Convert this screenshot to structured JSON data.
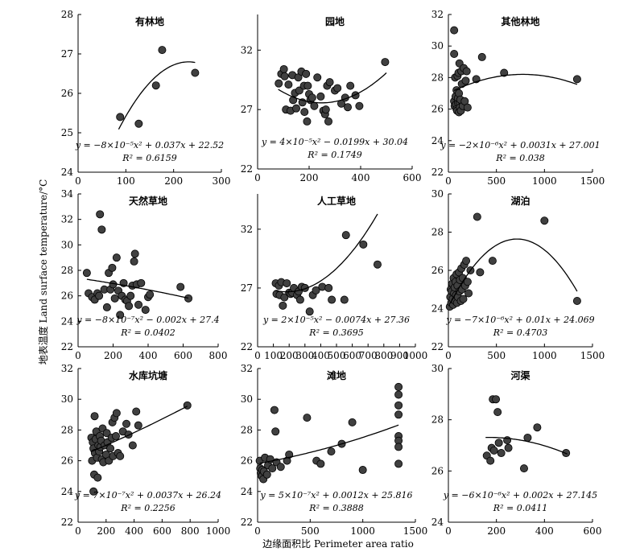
{
  "figure": {
    "ylabel": "地表温度 Land surface temperature/°C",
    "xlabel": "边缘面积比 Perimeter area ratio"
  },
  "chart_data": [
    {
      "type": "scatter",
      "title": "有林地",
      "xlim": [
        0,
        300
      ],
      "ylim": [
        24,
        28
      ],
      "xticks": [
        0,
        100,
        200,
        300
      ],
      "yticks": [
        24,
        25,
        26,
        27,
        28
      ],
      "points": [
        [
          88,
          25.4
        ],
        [
          127,
          25.23
        ],
        [
          163,
          26.2
        ],
        [
          176,
          27.1
        ],
        [
          245,
          26.52
        ]
      ],
      "fit": {
        "a": -8e-05,
        "b": 0.037,
        "c": 22.52,
        "xrange": [
          85,
          245
        ]
      },
      "equation": "y = −8×10⁻⁵x² + 0.037x + 22.52",
      "r2": "R² = 0.6159"
    },
    {
      "type": "scatter",
      "title": "园地",
      "xlim": [
        0,
        600
      ],
      "ylim": [
        22,
        35
      ],
      "xticks": [
        0,
        200,
        400,
        600
      ],
      "yticks": [
        22,
        27,
        32
      ],
      "points": [
        [
          82,
          29.2
        ],
        [
          92,
          30.0
        ],
        [
          102,
          30.4
        ],
        [
          105,
          29.8
        ],
        [
          110,
          27.0
        ],
        [
          120,
          29.1
        ],
        [
          128,
          26.9
        ],
        [
          135,
          29.9
        ],
        [
          138,
          27.8
        ],
        [
          145,
          28.4
        ],
        [
          150,
          27.1
        ],
        [
          158,
          29.7
        ],
        [
          162,
          28.6
        ],
        [
          170,
          30.2
        ],
        [
          174,
          27.6
        ],
        [
          180,
          29.0
        ],
        [
          182,
          26.8
        ],
        [
          188,
          30.0
        ],
        [
          192,
          26.0
        ],
        [
          195,
          29.0
        ],
        [
          200,
          28.3
        ],
        [
          205,
          27.8
        ],
        [
          212,
          28.0
        ],
        [
          220,
          27.3
        ],
        [
          232,
          29.7
        ],
        [
          245,
          28.1
        ],
        [
          255,
          26.9
        ],
        [
          262,
          26.6
        ],
        [
          265,
          27.0
        ],
        [
          270,
          29.0
        ],
        [
          275,
          26.0
        ],
        [
          280,
          29.3
        ],
        [
          300,
          28.6
        ],
        [
          310,
          28.8
        ],
        [
          325,
          27.5
        ],
        [
          340,
          28.0
        ],
        [
          350,
          27.2
        ],
        [
          360,
          29.0
        ],
        [
          380,
          28.2
        ],
        [
          395,
          27.3
        ],
        [
          495,
          31.0
        ]
      ],
      "fit": {
        "a": 4e-05,
        "b": -0.0199,
        "c": 30.04,
        "xrange": [
          80,
          500
        ]
      },
      "equation": "y = 4×10⁻⁵x² − 0.0199x + 30.04",
      "r2": "R² = 0.1749"
    },
    {
      "type": "scatter",
      "title": "其他林地",
      "xlim": [
        0,
        1500
      ],
      "ylim": [
        22,
        32
      ],
      "xticks": [
        0,
        500,
        1000,
        1500
      ],
      "yticks": [
        22,
        24,
        26,
        28,
        30,
        32
      ],
      "points": [
        [
          60,
          31.0
        ],
        [
          60,
          26.5
        ],
        [
          60,
          29.5
        ],
        [
          65,
          26.2
        ],
        [
          70,
          28.0
        ],
        [
          75,
          26.8
        ],
        [
          80,
          26.3
        ],
        [
          85,
          27.2
        ],
        [
          85,
          26.0
        ],
        [
          90,
          25.9
        ],
        [
          95,
          28.1
        ],
        [
          100,
          26.4
        ],
        [
          100,
          26.7
        ],
        [
          105,
          28.3
        ],
        [
          110,
          25.8
        ],
        [
          110,
          27.0
        ],
        [
          115,
          28.9
        ],
        [
          118,
          26.4
        ],
        [
          120,
          26.1
        ],
        [
          125,
          26.6
        ],
        [
          130,
          25.9
        ],
        [
          135,
          28.4
        ],
        [
          140,
          27.6
        ],
        [
          150,
          26.2
        ],
        [
          160,
          28.6
        ],
        [
          170,
          26.5
        ],
        [
          180,
          27.8
        ],
        [
          190,
          28.4
        ],
        [
          200,
          26.1
        ],
        [
          290,
          27.9
        ],
        [
          350,
          29.3
        ],
        [
          580,
          28.3
        ],
        [
          1340,
          27.9
        ]
      ],
      "fit": {
        "a": -2e-06,
        "b": 0.0031,
        "c": 27.001,
        "xrange": [
          60,
          1340
        ]
      },
      "equation": "y = −2×10⁻⁶x² + 0.0031x + 27.001",
      "r2": "R² = 0.038"
    },
    {
      "type": "scatter",
      "title": "天然草地",
      "xlim": [
        0,
        800
      ],
      "ylim": [
        22,
        34
      ],
      "xticks": [
        0,
        200,
        400,
        600,
        800
      ],
      "yticks": [
        22,
        24,
        26,
        28,
        30,
        32,
        34
      ],
      "points": [
        [
          50,
          27.8
        ],
        [
          60,
          26.2
        ],
        [
          80,
          25.9
        ],
        [
          95,
          25.7
        ],
        [
          110,
          26.2
        ],
        [
          120,
          26.0
        ],
        [
          125,
          32.4
        ],
        [
          135,
          31.2
        ],
        [
          150,
          26.5
        ],
        [
          165,
          25.1
        ],
        [
          175,
          27.8
        ],
        [
          185,
          26.5
        ],
        [
          195,
          28.2
        ],
        [
          200,
          26.9
        ],
        [
          210,
          25.8
        ],
        [
          220,
          29.0
        ],
        [
          230,
          26.4
        ],
        [
          240,
          24.5
        ],
        [
          250,
          26.0
        ],
        [
          260,
          27.0
        ],
        [
          270,
          25.7
        ],
        [
          280,
          25.6
        ],
        [
          290,
          25.2
        ],
        [
          300,
          26.0
        ],
        [
          310,
          26.8
        ],
        [
          320,
          28.7
        ],
        [
          325,
          29.3
        ],
        [
          335,
          26.9
        ],
        [
          345,
          25.3
        ],
        [
          360,
          27.0
        ],
        [
          385,
          24.9
        ],
        [
          400,
          25.9
        ],
        [
          410,
          26.1
        ],
        [
          585,
          26.7
        ],
        [
          630,
          25.8
        ]
      ],
      "fit": {
        "a": -8e-07,
        "b": -0.002,
        "c": 27.4,
        "xrange": [
          50,
          630
        ]
      },
      "equation": "y = −8×10⁻⁷x² − 0.002x + 27.4",
      "r2": "R² = 0.0402"
    },
    {
      "type": "scatter",
      "title": "人工草地",
      "xlim": [
        0,
        1000
      ],
      "ylim": [
        22,
        35
      ],
      "xticks": [
        0,
        100,
        200,
        300,
        400,
        500,
        600,
        700,
        800,
        900,
        1000
      ],
      "yticks": [
        22,
        27,
        32
      ],
      "points": [
        [
          115,
          27.4
        ],
        [
          120,
          26.5
        ],
        [
          135,
          27.2
        ],
        [
          140,
          26.4
        ],
        [
          150,
          27.5
        ],
        [
          160,
          25.5
        ],
        [
          170,
          26.2
        ],
        [
          185,
          27.4
        ],
        [
          200,
          26.6
        ],
        [
          210,
          26.5
        ],
        [
          220,
          26.6
        ],
        [
          230,
          27.0
        ],
        [
          250,
          26.4
        ],
        [
          260,
          26.7
        ],
        [
          270,
          26.0
        ],
        [
          280,
          27.1
        ],
        [
          300,
          27.0
        ],
        [
          330,
          25.0
        ],
        [
          350,
          26.4
        ],
        [
          370,
          26.8
        ],
        [
          410,
          27.1
        ],
        [
          450,
          27.0
        ],
        [
          470,
          26.0
        ],
        [
          550,
          26.0
        ],
        [
          560,
          31.5
        ],
        [
          670,
          30.7
        ],
        [
          760,
          29.0
        ]
      ],
      "fit": {
        "a": 2e-05,
        "b": -0.0074,
        "c": 27.36,
        "xrange": [
          110,
          760
        ]
      },
      "equation": "y = 2×10⁻⁵x² − 0.0074x + 27.36",
      "r2": "R² = 0.3695"
    },
    {
      "type": "scatter",
      "title": "湖泊",
      "xlim": [
        0,
        1500
      ],
      "ylim": [
        22,
        30
      ],
      "xticks": [
        0,
        500,
        1000,
        1500
      ],
      "yticks": [
        22,
        24,
        26,
        28,
        30
      ],
      "points": [
        [
          15,
          24.1
        ],
        [
          20,
          24.6
        ],
        [
          25,
          25.0
        ],
        [
          30,
          24.3
        ],
        [
          35,
          24.9
        ],
        [
          40,
          25.3
        ],
        [
          45,
          24.5
        ],
        [
          50,
          24.2
        ],
        [
          55,
          25.6
        ],
        [
          60,
          24.8
        ],
        [
          65,
          25.1
        ],
        [
          70,
          24.4
        ],
        [
          75,
          25.4
        ],
        [
          80,
          24.7
        ],
        [
          85,
          25.8
        ],
        [
          90,
          24.3
        ],
        [
          95,
          25.2
        ],
        [
          100,
          24.6
        ],
        [
          110,
          25.9
        ],
        [
          115,
          24.9
        ],
        [
          120,
          25.5
        ],
        [
          130,
          24.4
        ],
        [
          135,
          26.1
        ],
        [
          140,
          25.0
        ],
        [
          150,
          25.6
        ],
        [
          155,
          24.5
        ],
        [
          165,
          26.3
        ],
        [
          175,
          25.2
        ],
        [
          185,
          26.5
        ],
        [
          200,
          25.4
        ],
        [
          210,
          24.8
        ],
        [
          230,
          26.0
        ],
        [
          300,
          28.8
        ],
        [
          330,
          25.9
        ],
        [
          460,
          26.5
        ],
        [
          1000,
          28.6
        ],
        [
          1340,
          24.4
        ]
      ],
      "fit": {
        "a": -7e-06,
        "b": 0.01,
        "c": 24.069,
        "xrange": [
          20,
          1340
        ]
      },
      "equation": "y = −7×10⁻⁶x² + 0.01x + 24.069",
      "r2": "R² = 0.4703"
    },
    {
      "type": "scatter",
      "title": "水库坑塘",
      "xlim": [
        0,
        1000
      ],
      "ylim": [
        22,
        32
      ],
      "xticks": [
        0,
        200,
        400,
        600,
        800,
        1000
      ],
      "yticks": [
        22,
        24,
        26,
        28,
        30,
        32
      ],
      "points": [
        [
          95,
          27.5
        ],
        [
          100,
          26.0
        ],
        [
          105,
          27.2
        ],
        [
          110,
          26.8
        ],
        [
          115,
          25.1
        ],
        [
          118,
          28.9
        ],
        [
          120,
          26.5
        ],
        [
          125,
          27.4
        ],
        [
          130,
          27.9
        ],
        [
          135,
          26.2
        ],
        [
          140,
          24.9
        ],
        [
          145,
          27.0
        ],
        [
          150,
          26.6
        ],
        [
          155,
          27.6
        ],
        [
          160,
          26.9
        ],
        [
          165,
          27.3
        ],
        [
          170,
          26.1
        ],
        [
          175,
          28.1
        ],
        [
          180,
          25.9
        ],
        [
          190,
          27.0
        ],
        [
          200,
          26.4
        ],
        [
          205,
          27.8
        ],
        [
          210,
          27.2
        ],
        [
          220,
          26.0
        ],
        [
          230,
          26.8
        ],
        [
          240,
          27.5
        ],
        [
          245,
          28.5
        ],
        [
          250,
          26.3
        ],
        [
          260,
          28.8
        ],
        [
          270,
          27.6
        ],
        [
          275,
          29.1
        ],
        [
          285,
          26.5
        ],
        [
          300,
          26.3
        ],
        [
          320,
          27.9
        ],
        [
          345,
          28.4
        ],
        [
          360,
          27.7
        ],
        [
          390,
          27.0
        ],
        [
          415,
          29.2
        ],
        [
          430,
          28.3
        ],
        [
          780,
          29.6
        ],
        [
          110,
          24.0
        ]
      ],
      "fit": {
        "a": 7e-07,
        "b": 0.0037,
        "c": 26.24,
        "xrange": [
          90,
          780
        ]
      },
      "equation": "y = 7×10⁻⁷x² + 0.0037x + 26.24",
      "r2": "R² = 0.2256"
    },
    {
      "type": "scatter",
      "title": "滩地",
      "xlim": [
        0,
        1500
      ],
      "ylim": [
        22,
        32
      ],
      "xticks": [
        0,
        500,
        1000,
        1500
      ],
      "yticks": [
        22,
        24,
        26,
        28,
        30,
        32
      ],
      "points": [
        [
          20,
          26.0
        ],
        [
          25,
          25.5
        ],
        [
          30,
          25.2
        ],
        [
          40,
          25.0
        ],
        [
          45,
          25.4
        ],
        [
          55,
          24.8
        ],
        [
          60,
          25.3
        ],
        [
          70,
          26.2
        ],
        [
          90,
          25.1
        ],
        [
          100,
          25.7
        ],
        [
          120,
          26.1
        ],
        [
          140,
          25.5
        ],
        [
          160,
          29.3
        ],
        [
          170,
          27.9
        ],
        [
          180,
          25.9
        ],
        [
          220,
          25.6
        ],
        [
          280,
          26.0
        ],
        [
          300,
          26.4
        ],
        [
          470,
          28.8
        ],
        [
          560,
          26.0
        ],
        [
          600,
          25.8
        ],
        [
          700,
          26.6
        ],
        [
          800,
          27.1
        ],
        [
          900,
          28.5
        ],
        [
          1000,
          25.4
        ],
        [
          1340,
          30.8
        ],
        [
          1340,
          30.3
        ],
        [
          1340,
          29.6
        ],
        [
          1340,
          29.0
        ],
        [
          1340,
          27.6
        ],
        [
          1340,
          27.3
        ],
        [
          1340,
          26.9
        ],
        [
          1340,
          25.8
        ]
      ],
      "fit": {
        "a": 5e-07,
        "b": 0.0012,
        "c": 25.816,
        "xrange": [
          20,
          1340
        ]
      },
      "equation": "y = 5×10⁻⁷x² + 0.0012x + 25.816",
      "r2": "R² = 0.3888"
    },
    {
      "type": "scatter",
      "title": "河渠",
      "xlim": [
        0,
        600
      ],
      "ylim": [
        24,
        30
      ],
      "xticks": [
        0,
        200,
        400,
        600
      ],
      "yticks": [
        24,
        26,
        28,
        30
      ],
      "points": [
        [
          160,
          26.6
        ],
        [
          175,
          26.4
        ],
        [
          180,
          26.9
        ],
        [
          185,
          28.8
        ],
        [
          190,
          26.8
        ],
        [
          198,
          28.8
        ],
        [
          205,
          28.3
        ],
        [
          210,
          27.1
        ],
        [
          220,
          26.7
        ],
        [
          245,
          27.2
        ],
        [
          250,
          26.9
        ],
        [
          315,
          26.1
        ],
        [
          330,
          27.3
        ],
        [
          370,
          27.7
        ],
        [
          490,
          26.7
        ]
      ],
      "fit": {
        "a": -6e-06,
        "b": 0.002,
        "c": 27.145,
        "xrange": [
          155,
          495
        ]
      },
      "equation": "y = −6×10⁻⁶x² + 0.002x + 27.145",
      "r2": "R² = 0.0411"
    }
  ]
}
